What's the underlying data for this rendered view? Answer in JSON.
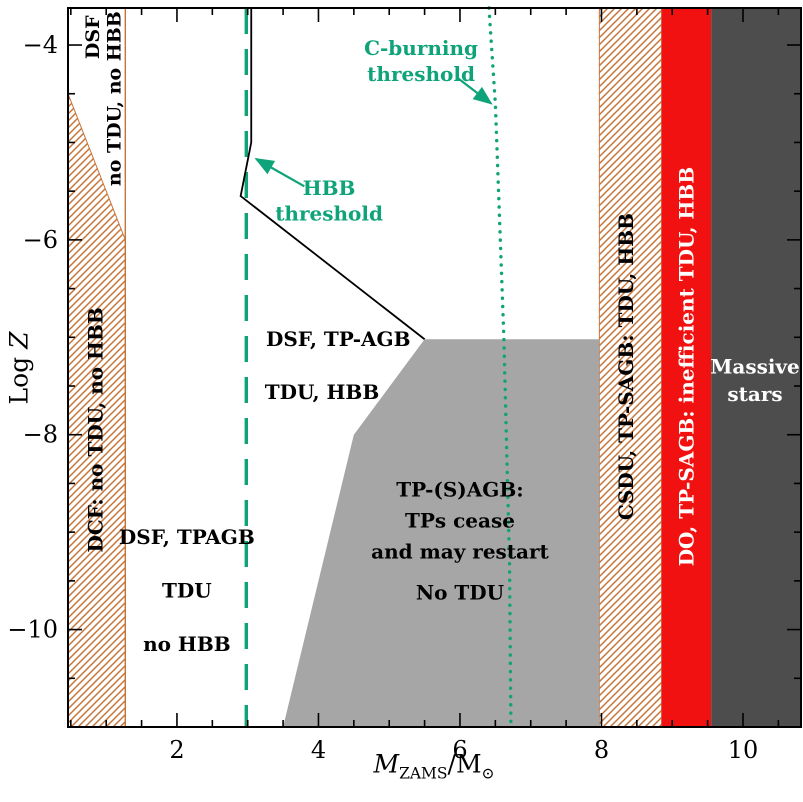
{
  "chart_data": {
    "type": "area",
    "title": "",
    "xlabel_parts": {
      "var": "M",
      "sub": "ZAMS",
      "sep": "/M",
      "sun": "⊙"
    },
    "ylabel_parts": {
      "prefix": "Log ",
      "var": "Z"
    },
    "xlim": [
      0.46,
      10.82
    ],
    "ylim": [
      -11.0,
      -3.62
    ],
    "xticks": [
      2,
      4,
      6,
      8,
      10
    ],
    "yticks": [
      -4,
      -6,
      -8,
      -10
    ],
    "minor_tick_step": 0.5,
    "grid": false,
    "colors": {
      "teal": "#0fa379",
      "hatch": "#c77439",
      "red": "#f21111",
      "gray": "#a6a6a6",
      "darkgray": "#4d4d4d",
      "black": "#000000",
      "white": "#ffffff"
    },
    "regions": [
      {
        "name": "dcf-hatched-band",
        "fill": "hatch",
        "points": [
          [
            0.46,
            -4.5
          ],
          [
            1.27,
            -6.0
          ],
          [
            1.27,
            -11.0
          ],
          [
            0.46,
            -11.0
          ]
        ]
      },
      {
        "name": "csdu-hatched-band",
        "fill": "hatch",
        "points": [
          [
            7.97,
            -3.62
          ],
          [
            8.85,
            -3.62
          ],
          [
            8.85,
            -11.0
          ],
          [
            7.97,
            -11.0
          ]
        ]
      },
      {
        "name": "do-red-band",
        "fill": "red",
        "points": [
          [
            8.85,
            -3.62
          ],
          [
            9.55,
            -3.62
          ],
          [
            9.55,
            -11.0
          ],
          [
            8.85,
            -11.0
          ]
        ]
      },
      {
        "name": "massive-stars-band",
        "fill": "darkgray",
        "points": [
          [
            9.55,
            -3.62
          ],
          [
            10.82,
            -3.62
          ],
          [
            10.82,
            -11.0
          ],
          [
            9.55,
            -11.0
          ]
        ]
      },
      {
        "name": "tpsagb-gray-region",
        "fill": "gray",
        "points": [
          [
            5.5,
            -7.02
          ],
          [
            7.97,
            -7.02
          ],
          [
            7.97,
            -11.0
          ],
          [
            3.5,
            -11.0
          ],
          [
            4.5,
            -8.0
          ]
        ]
      }
    ],
    "lines": [
      {
        "name": "dsf-band-right-edge",
        "style": "solid",
        "color": "hatch",
        "width": 1.4,
        "points": [
          [
            1.27,
            -3.62
          ],
          [
            1.27,
            -11.0
          ]
        ]
      },
      {
        "name": "hbb-threshold-line",
        "style": "dashed",
        "color": "teal",
        "width": 3.4,
        "points": [
          [
            2.98,
            -3.62
          ],
          [
            2.98,
            -11.0
          ]
        ]
      },
      {
        "name": "dsf-hbb-boundary",
        "style": "solid",
        "color": "black",
        "width": 1.8,
        "points": [
          [
            3.05,
            -3.62
          ],
          [
            3.05,
            -5.0
          ],
          [
            2.9,
            -5.55
          ],
          [
            5.5,
            -7.02
          ]
        ]
      },
      {
        "name": "c-burning-threshold-line",
        "style": "dotted",
        "color": "teal",
        "width": 3.4,
        "points": [
          [
            6.41,
            -3.62
          ],
          [
            6.5,
            -4.6
          ],
          [
            6.62,
            -7.0
          ],
          [
            6.7,
            -9.3
          ],
          [
            6.72,
            -11.0
          ]
        ]
      }
    ],
    "labels": [
      {
        "name": "label-dsf-top",
        "text": "DSF",
        "x": 0.8,
        "y": -3.92,
        "rot": -90,
        "color": "black",
        "size": 19
      },
      {
        "name": "label-no-tdu-no-hbb-top",
        "text": "no TDU, no HBB",
        "x": 1.1,
        "y": -4.55,
        "rot": -90,
        "color": "black",
        "size": 19
      },
      {
        "name": "label-dcf-band",
        "text": "DCF: no TDU, no HBB",
        "x": 0.85,
        "y": -7.95,
        "rot": -90,
        "color": "black",
        "size": 20
      },
      {
        "name": "label-dsf-tpagb",
        "text": "DSF, TPAGB",
        "x": 2.14,
        "y": -9.05,
        "rot": 0,
        "color": "black",
        "size": 20
      },
      {
        "name": "label-tdu",
        "text": "TDU",
        "x": 2.14,
        "y": -9.6,
        "rot": 0,
        "color": "black",
        "size": 20
      },
      {
        "name": "label-no-hbb",
        "text": "no HBB",
        "x": 2.14,
        "y": -10.15,
        "rot": 0,
        "color": "black",
        "size": 20
      },
      {
        "name": "label-dsf-tp-agb",
        "text": "DSF, TP-AGB",
        "x": 4.28,
        "y": -7.02,
        "rot": 0,
        "color": "black",
        "size": 20
      },
      {
        "name": "label-tdu-hbb",
        "text": "TDU, HBB",
        "x": 4.05,
        "y": -7.56,
        "rot": 0,
        "color": "black",
        "size": 20
      },
      {
        "name": "label-tpsagb-title",
        "text": "TP-(S)AGB:",
        "x": 6.0,
        "y": -8.56,
        "rot": 0,
        "color": "black",
        "size": 20
      },
      {
        "name": "label-tps-cease",
        "text": "TPs cease",
        "x": 6.0,
        "y": -8.88,
        "rot": 0,
        "color": "black",
        "size": 20
      },
      {
        "name": "label-and-may-restart",
        "text": "and may restart",
        "x": 6.0,
        "y": -9.2,
        "rot": 0,
        "color": "black",
        "size": 20
      },
      {
        "name": "label-no-tdu",
        "text": "No TDU",
        "x": 6.0,
        "y": -9.62,
        "rot": 0,
        "color": "black",
        "size": 20
      },
      {
        "name": "label-csdu-band",
        "text": "CSDU, TP-SAGB: TDU, HBB",
        "x": 8.35,
        "y": -7.3,
        "rot": -90,
        "color": "black",
        "size": 20
      },
      {
        "name": "label-do-band",
        "text": "DO, TP-SAGB: inefficient TDU, HBB",
        "x": 9.2,
        "y": -7.3,
        "rot": -90,
        "color": "white",
        "size": 20
      },
      {
        "name": "label-massive",
        "text": "Massive",
        "x": 10.17,
        "y": -7.3,
        "rot": 0,
        "color": "white",
        "size": 20
      },
      {
        "name": "label-stars",
        "text": "stars",
        "x": 10.17,
        "y": -7.58,
        "rot": 0,
        "color": "white",
        "size": 20
      },
      {
        "name": "label-c-burning",
        "text": "C-burning",
        "x": 5.45,
        "y": -4.03,
        "rot": 0,
        "color": "teal",
        "size": 20
      },
      {
        "name": "label-c-burning-threshold",
        "text": "threshold",
        "x": 5.45,
        "y": -4.3,
        "rot": 0,
        "color": "teal",
        "size": 20
      },
      {
        "name": "label-hbb",
        "text": "HBB",
        "x": 4.15,
        "y": -5.47,
        "rot": 0,
        "color": "teal",
        "size": 20
      },
      {
        "name": "label-hbb-threshold",
        "text": "threshold",
        "x": 4.15,
        "y": -5.73,
        "rot": 0,
        "color": "teal",
        "size": 20
      }
    ],
    "arrows": [
      {
        "name": "c-burning-arrow",
        "color": "teal",
        "from": [
          5.95,
          -4.33
        ],
        "to": [
          6.44,
          -4.6
        ]
      },
      {
        "name": "hbb-arrow",
        "color": "teal",
        "from": [
          3.8,
          -5.45
        ],
        "to": [
          3.12,
          -5.17
        ]
      }
    ]
  }
}
